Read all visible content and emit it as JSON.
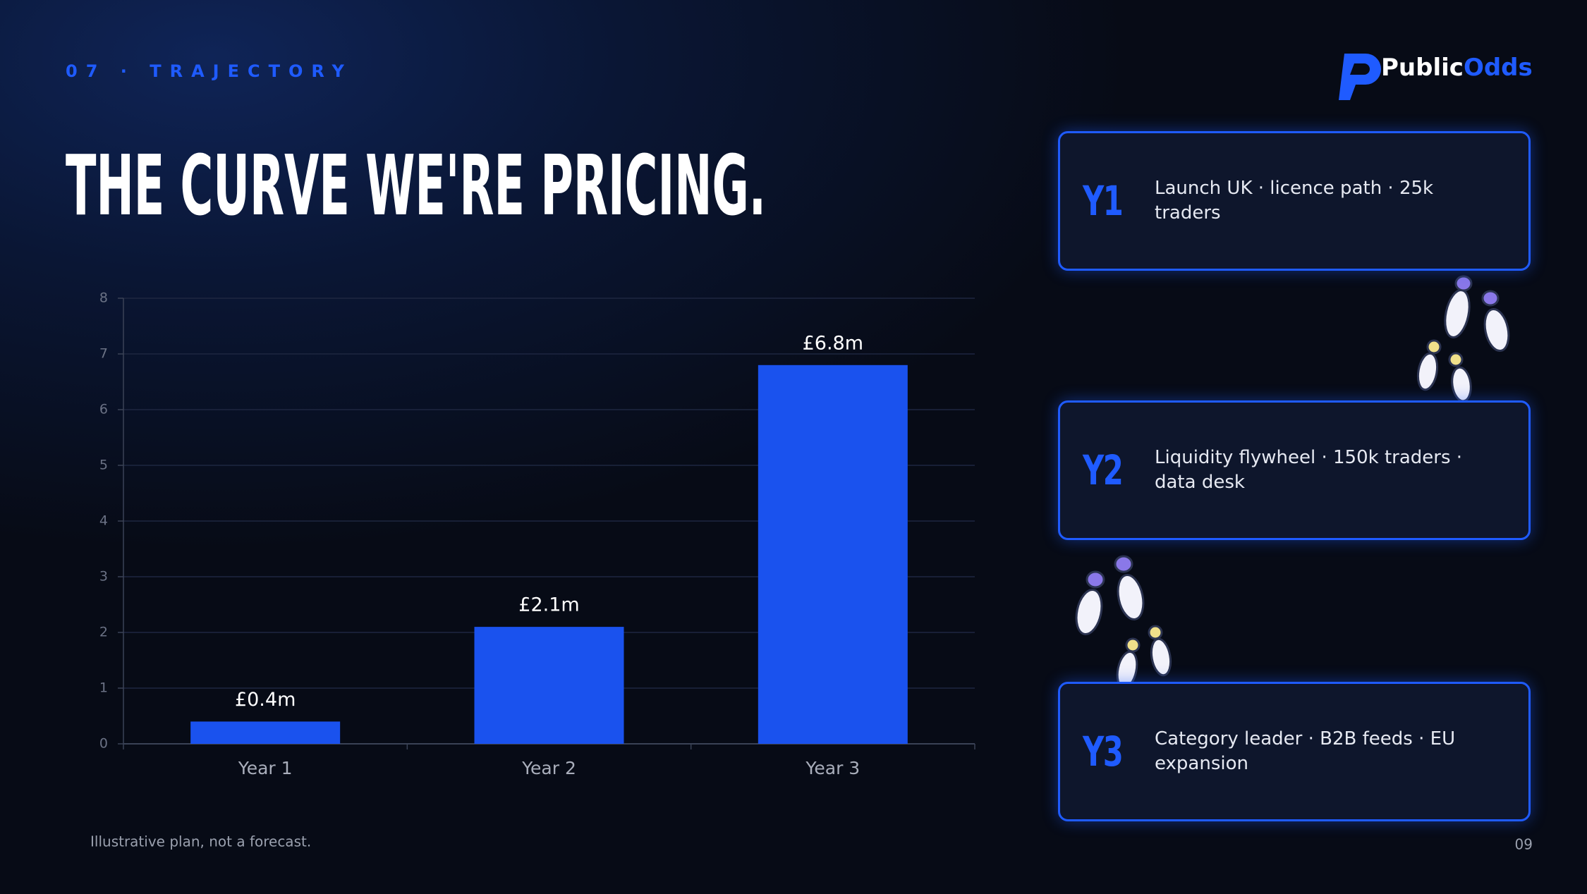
{
  "header": {
    "section": "07 · TRAJECTORY",
    "logo_main": "Public",
    "logo_accent": "Odds",
    "title": "THE CURVE WE'RE PRICING."
  },
  "chart_data": {
    "type": "bar",
    "categories": [
      "Year 1",
      "Year 2",
      "Year 3"
    ],
    "values": [
      0.4,
      2.1,
      6.8
    ],
    "value_labels": [
      "£0.4m",
      "£2.1m",
      "£6.8m"
    ],
    "color": "#1a52ee",
    "ylim": [
      0,
      8
    ],
    "yticks": [
      0,
      1,
      2,
      3,
      4,
      5,
      6,
      7,
      8
    ],
    "grid": true
  },
  "cards": [
    {
      "tag": "Y1",
      "text": "Launch UK · licence path · 25k traders"
    },
    {
      "tag": "Y2",
      "text": "Liquidity flywheel · 150k traders · data desk"
    },
    {
      "tag": "Y3",
      "text": "Category leader · B2B feeds · EU expansion"
    }
  ],
  "footnote": "Illustrative plan, not a forecast.",
  "page_number": "09"
}
